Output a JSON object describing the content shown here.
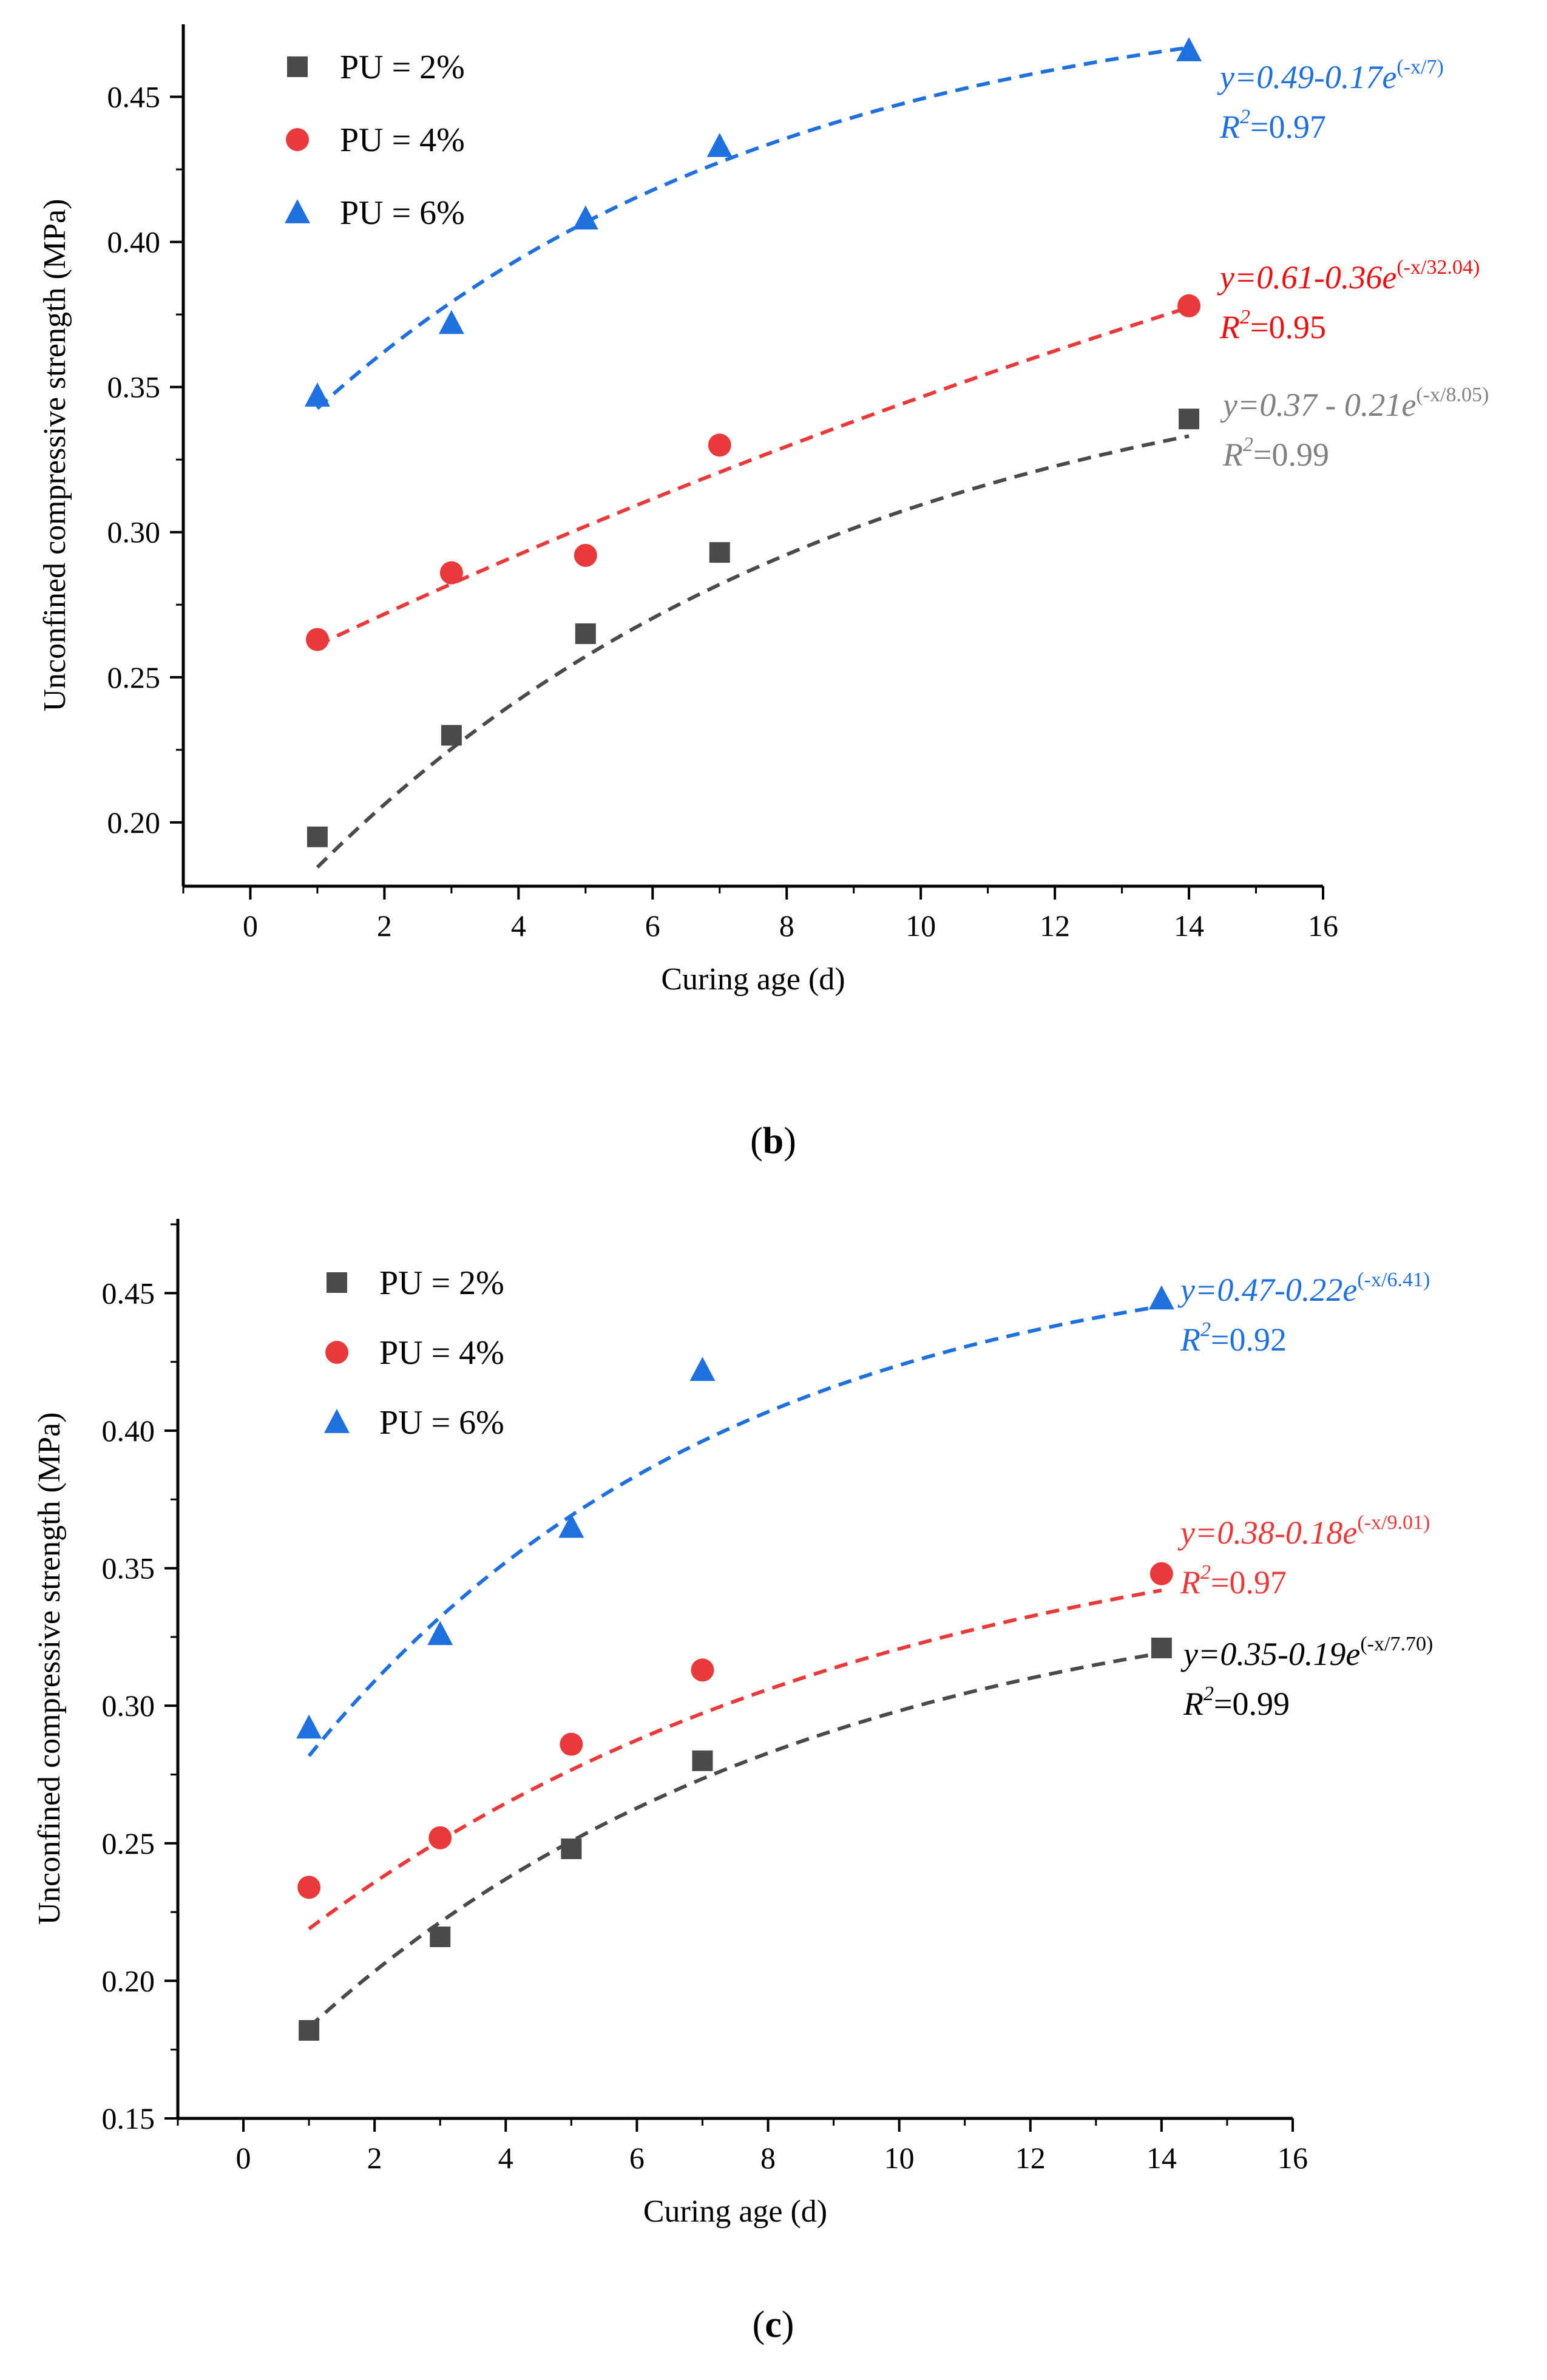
{
  "chart_data": [
    {
      "type": "scatter",
      "caption_letter": "b",
      "xlabel": "Curing age (d)",
      "ylabel": "Unconfined compressive strength (MPa)",
      "xlim": [
        -1,
        16
      ],
      "ylim": [
        0.178,
        0.475
      ],
      "xticks": [
        "0",
        "2",
        "4",
        "6",
        "8",
        "10",
        "12",
        "14",
        "16"
      ],
      "yticks": [
        "0.20",
        "0.25",
        "0.30",
        "0.35",
        "0.40",
        "0.45"
      ],
      "grid": false,
      "legend_position": "top-left",
      "series": [
        {
          "name": "PU = 2%",
          "marker": "square",
          "color": "#4a4a4a",
          "x": [
            1,
            3,
            5,
            7,
            14
          ],
          "values": [
            0.195,
            0.23,
            0.265,
            0.293,
            0.339
          ],
          "fit": {
            "a": 0.37,
            "b": 0.21,
            "tau": 8.05
          },
          "equation": {
            "text": "y=0.37 - 0.21e",
            "exp": "(-x/8.05)",
            "r2_text": "R",
            "r2_exp": "2",
            "r2_value": "=0.99",
            "color": "#808080"
          }
        },
        {
          "name": "PU = 4%",
          "marker": "circle",
          "color": "#e83a3a",
          "x": [
            1,
            3,
            5,
            7,
            14
          ],
          "values": [
            0.263,
            0.286,
            0.292,
            0.33,
            0.378
          ],
          "fit": {
            "a": 0.61,
            "b": 0.36,
            "tau": 32.04
          },
          "equation": {
            "text": "y=0.61-0.36e",
            "exp": "(-x/32.04)",
            "r2_text": "R",
            "r2_exp": "2",
            "r2_value": "=0.95",
            "color": "#e81010"
          }
        },
        {
          "name": "PU = 6%",
          "marker": "triangle",
          "color": "#1f6fdc",
          "x": [
            1,
            3,
            5,
            7,
            14
          ],
          "values": [
            0.347,
            0.372,
            0.408,
            0.433,
            0.466
          ],
          "fit": {
            "a": 0.49,
            "b": 0.17,
            "tau": 7
          },
          "equation": {
            "text": "y=0.49-0.17e",
            "exp": "(-x/7)",
            "r2_text": "R",
            "r2_exp": "2",
            "r2_value": "=0.97",
            "color": "#1f6fdc"
          }
        }
      ]
    },
    {
      "type": "scatter",
      "caption_letter": "c",
      "xlabel": "Curing age (d)",
      "ylabel": "Unconfined compressive strength (MPa)",
      "xlim": [
        -1,
        16
      ],
      "ylim": [
        0.15,
        0.477
      ],
      "xticks": [
        "0",
        "2",
        "4",
        "6",
        "8",
        "10",
        "12",
        "14",
        "16"
      ],
      "yticks": [
        "0.15",
        "0.20",
        "0.25",
        "0.30",
        "0.35",
        "0.40",
        "0.45"
      ],
      "grid": false,
      "legend_position": "top-left",
      "series": [
        {
          "name": "PU = 2%",
          "marker": "square",
          "color": "#4a4a4a",
          "x": [
            1,
            3,
            5,
            7,
            14
          ],
          "values": [
            0.182,
            0.216,
            0.248,
            0.28,
            0.321
          ],
          "fit": {
            "a": 0.35,
            "b": 0.19,
            "tau": 7.7
          },
          "equation": {
            "text": "y=0.35-0.19e",
            "exp": "(-x/7.70)",
            "r2_text": "R",
            "r2_exp": "2",
            "r2_value": "=0.99",
            "color": "#000000"
          }
        },
        {
          "name": "PU = 4%",
          "marker": "circle",
          "color": "#e83a3a",
          "x": [
            1,
            3,
            5,
            7,
            14
          ],
          "values": [
            0.234,
            0.252,
            0.286,
            0.313,
            0.348
          ],
          "fit": {
            "a": 0.38,
            "b": 0.18,
            "tau": 9.01
          },
          "equation": {
            "text": "y=0.38-0.18e",
            "exp": "(-x/9.01)",
            "r2_text": "R",
            "r2_exp": "2",
            "r2_value": "=0.97",
            "color": "#e83a3a"
          }
        },
        {
          "name": "PU = 6%",
          "marker": "triangle",
          "color": "#1f6fdc",
          "x": [
            1,
            3,
            5,
            7,
            14
          ],
          "values": [
            0.292,
            0.326,
            0.365,
            0.422,
            0.448
          ],
          "fit": {
            "a": 0.47,
            "b": 0.22,
            "tau": 6.41
          },
          "equation": {
            "text": "y=0.47-0.22e",
            "exp": "(-x/6.41)",
            "r2_text": "R",
            "r2_exp": "2",
            "r2_value": "=0.92",
            "color": "#1f6fdc"
          }
        }
      ]
    }
  ]
}
